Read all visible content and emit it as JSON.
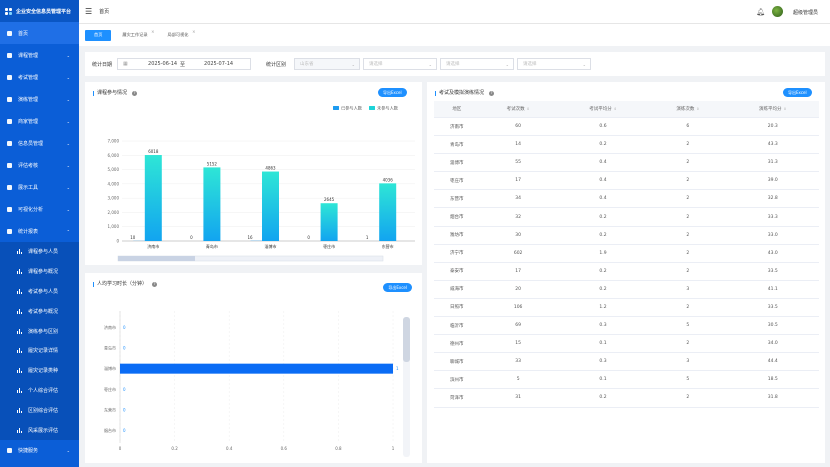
{
  "app": {
    "title": "企业安全信息员管理平台"
  },
  "sidebar": {
    "items": [
      {
        "label": "首页",
        "active": true,
        "icon": "home-icon"
      },
      {
        "label": "课程管理",
        "icon": "course-icon"
      },
      {
        "label": "考试管理",
        "icon": "exam-icon"
      },
      {
        "label": "演练管理",
        "icon": "drill-icon"
      },
      {
        "label": "商家管理",
        "icon": "shop-icon"
      },
      {
        "label": "信息员管理",
        "icon": "user-icon"
      },
      {
        "label": "评估考核",
        "icon": "assess-icon"
      },
      {
        "label": "展示工具",
        "icon": "display-icon"
      },
      {
        "label": "可视化分析",
        "icon": "visual-icon"
      },
      {
        "label": "统计报表",
        "icon": "report-icon",
        "expanded": true
      }
    ],
    "sub_items": [
      "课程参与人员",
      "课程参与概况",
      "考试参与人员",
      "考试参与概况",
      "演练参与区别",
      "履灾记录详情",
      "履灾记录类种",
      "个人综合评估",
      "区别综合评估",
      "风采展示评估"
    ],
    "bottom_item": {
      "label": "快捷服务",
      "icon": "shortcut-icon"
    }
  },
  "header": {
    "breadcrumb": "首页",
    "user": "超级管理员"
  },
  "tabs": [
    {
      "label": "首页",
      "active": true
    },
    {
      "label": "履灾工作记录"
    },
    {
      "label": "局部可视化"
    }
  ],
  "filter": {
    "date_label": "统计日期",
    "date_start": "2025-06-14",
    "date_to": "至",
    "date_end": "2025-07-14",
    "region_label": "统计区别",
    "select1_placeholder": "山东省",
    "select2_placeholder": "请选择",
    "select3_placeholder": "请选择",
    "select4_placeholder": "请选择"
  },
  "course_panel": {
    "title": "课程参与情况",
    "export": "导出Excel",
    "legend": [
      "已参与人数",
      "未参与人数"
    ]
  },
  "study_panel": {
    "title": "人均学习时长（分钟）",
    "export": "导出Excel"
  },
  "exam_panel": {
    "title": "考试及模拟演练情况",
    "export": "导出Excel",
    "columns": [
      "地区",
      "考试次数",
      "考试平均分",
      "演练次数",
      "演练平均分"
    ],
    "rows": [
      [
        "济南市",
        "60",
        "0.6",
        "6",
        "20.3"
      ],
      [
        "青岛市",
        "14",
        "0.2",
        "2",
        "43.3"
      ],
      [
        "淄博市",
        "55",
        "0.4",
        "2",
        "31.3"
      ],
      [
        "枣庄市",
        "17",
        "0.4",
        "2",
        "39.0"
      ],
      [
        "东营市",
        "34",
        "0.4",
        "2",
        "32.8"
      ],
      [
        "烟台市",
        "32",
        "0.2",
        "2",
        "33.3"
      ],
      [
        "潍坊市",
        "30",
        "0.2",
        "2",
        "33.0"
      ],
      [
        "济宁市",
        "602",
        "1.9",
        "2",
        "43.0"
      ],
      [
        "泰安市",
        "17",
        "0.2",
        "2",
        "33.5"
      ],
      [
        "威海市",
        "20",
        "0.2",
        "3",
        "41.1"
      ],
      [
        "日照市",
        "106",
        "1.2",
        "2",
        "33.5"
      ],
      [
        "临沂市",
        "69",
        "0.3",
        "5",
        "30.5"
      ],
      [
        "德州市",
        "15",
        "0.1",
        "2",
        "34.0"
      ],
      [
        "聊城市",
        "33",
        "0.3",
        "3",
        "44.4"
      ],
      [
        "滨州市",
        "5",
        "0.1",
        "5",
        "18.5"
      ],
      [
        "菏泽市",
        "31",
        "0.2",
        "2",
        "31.8"
      ]
    ]
  },
  "colors": {
    "primary": "#1e90ff",
    "sidebar": "#0b5ed7",
    "bar_blue": "#1e9bf0",
    "bar_cyan": "#1dd3d8",
    "hbar": "#0a6cf5"
  },
  "chart_data": [
    {
      "type": "bar",
      "title": "课程参与情况",
      "categories": [
        "济南市",
        "青岛市",
        "淄博市",
        "枣庄市",
        "东营市"
      ],
      "series": [
        {
          "name": "已参与人数",
          "values": [
            10,
            0,
            16,
            0,
            1
          ]
        },
        {
          "name": "未参与人数",
          "values": [
            6018,
            5152,
            4863,
            2645,
            4036
          ]
        }
      ],
      "yticks": [
        "0",
        "1,000",
        "2,000",
        "3,000",
        "4,000",
        "5,000",
        "6,000",
        "7,000"
      ],
      "ylim": [
        0,
        7000
      ],
      "legend": "top-right"
    },
    {
      "type": "bar",
      "orientation": "horizontal",
      "title": "人均学习时长（分钟）",
      "categories": [
        "济南市",
        "青岛市",
        "淄博市",
        "枣庄市",
        "东营市",
        "烟台市"
      ],
      "values": [
        0,
        0,
        1,
        0,
        0,
        0
      ],
      "xticks": [
        "0",
        "0.2",
        "0.4",
        "0.6",
        "0.8",
        "1"
      ],
      "xlim": [
        0,
        1
      ]
    }
  ]
}
